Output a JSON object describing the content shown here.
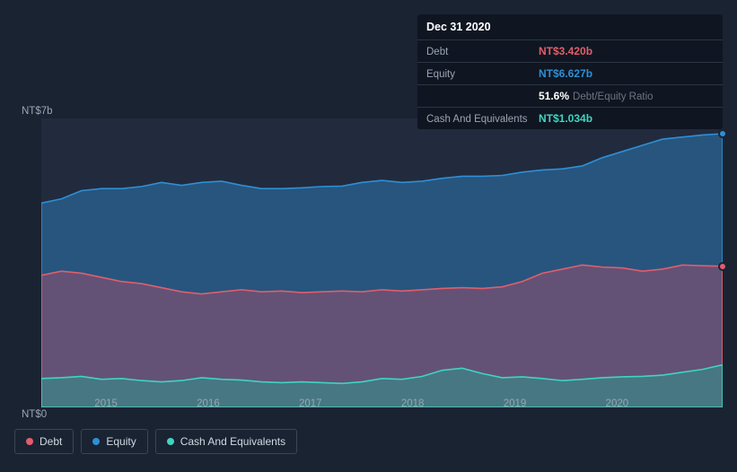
{
  "background_color": "#1a2332",
  "plot_background": "#212b3d",
  "tooltip": {
    "date": "Dec 31 2020",
    "rows": [
      {
        "label": "Debt",
        "value": "NT$3.420b",
        "color": "#e15e6c"
      },
      {
        "label": "Equity",
        "value": "NT$6.627b",
        "color": "#2e8fd6"
      },
      {
        "label": "",
        "value": "51.6%",
        "sub": "Debt/Equity Ratio",
        "color": "#ffffff"
      },
      {
        "label": "Cash And Equivalents",
        "value": "NT$1.034b",
        "color": "#3fd4c1"
      }
    ]
  },
  "chart": {
    "type": "area",
    "ylim": [
      0,
      7
    ],
    "y_unit_prefix": "NT$",
    "y_unit_suffix": "b",
    "y_top_label": "NT$7b",
    "y_bottom_label": "NT$0",
    "x_labels": [
      "2015",
      "2016",
      "2017",
      "2018",
      "2019",
      "2020"
    ],
    "x_positions_pct": [
      9.5,
      24.5,
      39.5,
      54.5,
      69.5,
      84.5
    ],
    "series": {
      "equity": {
        "label": "Equity",
        "color": "#2e8fd6",
        "fill": "rgba(46,120,180,0.55)",
        "values": [
          4.95,
          5.05,
          5.25,
          5.3,
          5.3,
          5.35,
          5.45,
          5.38,
          5.45,
          5.48,
          5.38,
          5.3,
          5.3,
          5.32,
          5.35,
          5.36,
          5.45,
          5.5,
          5.45,
          5.48,
          5.55,
          5.6,
          5.6,
          5.62,
          5.7,
          5.75,
          5.78,
          5.85,
          6.05,
          6.2,
          6.35,
          6.5,
          6.55,
          6.6,
          6.63
        ],
        "end_marker": true
      },
      "debt": {
        "label": "Debt",
        "color": "#e15e6c",
        "fill": "rgba(160,80,110,0.50)",
        "values": [
          3.2,
          3.3,
          3.25,
          3.15,
          3.05,
          3.0,
          2.9,
          2.8,
          2.75,
          2.8,
          2.85,
          2.8,
          2.82,
          2.78,
          2.8,
          2.82,
          2.8,
          2.85,
          2.82,
          2.85,
          2.88,
          2.9,
          2.88,
          2.92,
          3.05,
          3.25,
          3.35,
          3.45,
          3.4,
          3.38,
          3.3,
          3.35,
          3.45,
          3.43,
          3.42
        ],
        "end_marker": true
      },
      "cash": {
        "label": "Cash And Equivalents",
        "color": "#3fd4c1",
        "fill": "rgba(50,150,140,0.55)",
        "values": [
          0.7,
          0.72,
          0.75,
          0.68,
          0.7,
          0.65,
          0.62,
          0.65,
          0.72,
          0.68,
          0.66,
          0.62,
          0.6,
          0.62,
          0.6,
          0.58,
          0.62,
          0.7,
          0.68,
          0.75,
          0.9,
          0.95,
          0.82,
          0.72,
          0.74,
          0.7,
          0.65,
          0.68,
          0.72,
          0.74,
          0.75,
          0.78,
          0.85,
          0.92,
          1.03
        ],
        "end_marker": false
      }
    }
  },
  "legend": [
    {
      "label": "Debt",
      "color": "#e15e6c"
    },
    {
      "label": "Equity",
      "color": "#2e8fd6"
    },
    {
      "label": "Cash And Equivalents",
      "color": "#3fd4c1"
    }
  ]
}
